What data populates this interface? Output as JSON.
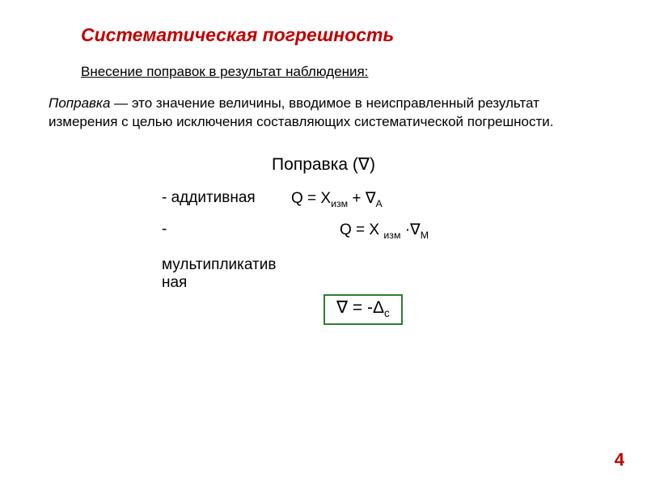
{
  "colors": {
    "title_color": "#c00000",
    "text_color": "#000000",
    "box_border": "#2e7d32",
    "page_number_color": "#c00000",
    "background": "#ffffff"
  },
  "title": "Систематическая погрешность",
  "subtitle": "Внесение поправок в результат наблюдения:",
  "definition": {
    "term": "Поправка",
    "dash": " — ",
    "rest": "это значение величины, вводимое в неисправленный результат измерения с целью исключения составляющих систематической погрешности."
  },
  "correction_heading": {
    "text": "Поправка (",
    "symbol": "∇",
    "close": ")"
  },
  "formulas": {
    "additive": {
      "label": "- аддитивная",
      "lhs": "Q = X",
      "lhs_sub": "изм",
      "op": " + ",
      "rhs_sym": "∇",
      "rhs_sub": "А"
    },
    "multiplicative": {
      "bullet": "-",
      "label_line1": "мультипликатив",
      "label_line2": "ная",
      "lhs": "Q = X ",
      "lhs_sub": "изм",
      "op": " ·",
      "rhs_sym": "∇",
      "rhs_sub": "М"
    },
    "boxed": {
      "lhs_sym": "∇",
      "eq": " = -Δ",
      "sub": "с"
    }
  },
  "page_number": "4",
  "fontsizes": {
    "title": 23,
    "subtitle": 17,
    "body": 17,
    "heading": 21,
    "formula": 19,
    "boxed": 21,
    "pagenum": 22
  }
}
